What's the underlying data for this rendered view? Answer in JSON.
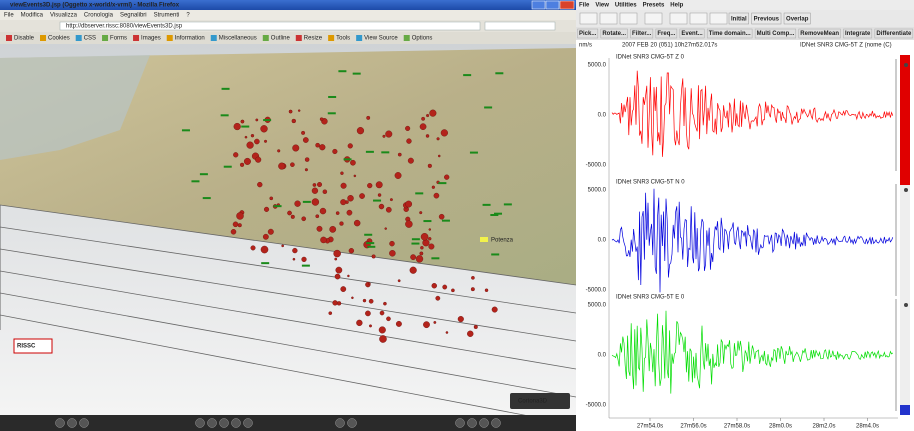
{
  "browser": {
    "title": "viewEvents3D.jsp (Oggetto x-world/x-vrml) - Mozilla Firefox",
    "menu": [
      "File",
      "Modifica",
      "Visualizza",
      "Cronologia",
      "Segnalibri",
      "Strumenti",
      "?"
    ],
    "url": "http://dbserver.rissc:8080/viewEvents3D.jsp",
    "toolbar": [
      "Disable",
      "Cookies",
      "CSS",
      "Forms",
      "Images",
      "Information",
      "Miscellaneous",
      "Outline",
      "Resize",
      "Tools",
      "View Source",
      "Options"
    ]
  },
  "view3d": {
    "place_label": "Potenza",
    "logo": "RISSC",
    "player": "Cortona3D"
  },
  "seismo": {
    "menu": [
      "File",
      "View",
      "Utilities",
      "Presets",
      "Help"
    ],
    "buttons": [
      "Initial",
      "Previous",
      "Overlap"
    ],
    "tools": [
      "Pick...",
      "Rotate...",
      "Filter...",
      "Freq...",
      "Event...",
      "Time domain...",
      "Multi Comp...",
      "RemoveMean",
      "Integrate",
      "Differentiate"
    ],
    "units": "nm/s",
    "start_time": "2007 FEB 20 (051) 10h27m52.017s",
    "station": "IDNet SNR3 CMG-5T Z (nome (C)",
    "traces": [
      {
        "label": "IDNet SNR3 CMG-5T Z 0",
        "color": "#ff0000"
      },
      {
        "label": "IDNet SNR3 CMG-5T N 0",
        "color": "#0000dd"
      },
      {
        "label": "IDNet SNR3 CMG-5T E 0",
        "color": "#00dd00"
      }
    ],
    "amplitude_labels": [
      "5000.0",
      "0.0",
      "-5000.0"
    ],
    "time_labels": [
      "27m54.0s",
      "27m56.0s",
      "27m58.0s",
      "28m0.0s",
      "28m2.0s",
      "28m4.0s"
    ]
  }
}
